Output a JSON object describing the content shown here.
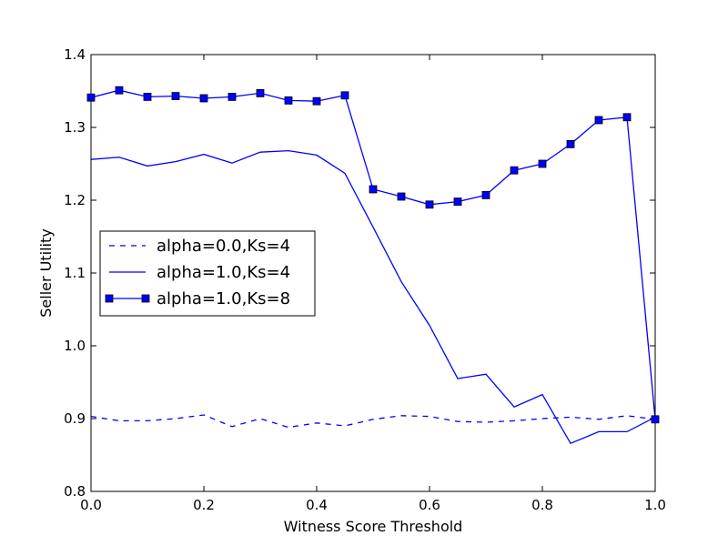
{
  "chart_data": {
    "type": "line",
    "title": "",
    "xlabel": "Witness Score Threshold",
    "ylabel": "Seller Utility",
    "xlim": [
      0.0,
      1.0
    ],
    "ylim": [
      0.8,
      1.4
    ],
    "xticks": [
      0.0,
      0.2,
      0.4,
      0.6,
      0.8,
      1.0
    ],
    "xtick_labels": [
      "0.0",
      "0.2",
      "0.4",
      "0.6",
      "0.8",
      "1.0"
    ],
    "yticks": [
      0.8,
      0.9,
      1.0,
      1.1,
      1.2,
      1.3,
      1.4
    ],
    "ytick_labels": [
      "0.8",
      "0.9",
      "1.0",
      "1.1",
      "1.2",
      "1.3",
      "1.4"
    ],
    "grid": false,
    "legend_position": "center-left",
    "color": "#0000ff",
    "x": [
      0.0,
      0.05,
      0.1,
      0.15,
      0.2,
      0.25,
      0.3,
      0.35,
      0.4,
      0.45,
      0.5,
      0.55,
      0.6,
      0.65,
      0.7,
      0.75,
      0.8,
      0.85,
      0.9,
      0.95,
      1.0
    ],
    "series": [
      {
        "name": "alpha=0.0,Ks=4",
        "style": "dashed",
        "marker": "none",
        "values": [
          0.903,
          0.897,
          0.897,
          0.9,
          0.905,
          0.889,
          0.9,
          0.888,
          0.894,
          0.89,
          0.899,
          0.904,
          0.903,
          0.896,
          0.895,
          0.897,
          0.9,
          0.902,
          0.899,
          0.904,
          0.899
        ]
      },
      {
        "name": "alpha=1.0,Ks=4",
        "style": "solid",
        "marker": "none",
        "values": [
          1.256,
          1.259,
          1.247,
          1.253,
          1.263,
          1.251,
          1.266,
          1.268,
          1.262,
          1.237,
          1.163,
          1.088,
          1.028,
          0.955,
          0.961,
          0.916,
          0.933,
          0.866,
          0.882,
          0.882,
          0.902
        ]
      },
      {
        "name": "alpha=1.0,Ks=8",
        "style": "solid",
        "marker": "square",
        "values": [
          1.341,
          1.351,
          1.342,
          1.343,
          1.34,
          1.342,
          1.347,
          1.337,
          1.336,
          1.344,
          1.215,
          1.205,
          1.194,
          1.198,
          1.207,
          1.241,
          1.25,
          1.277,
          1.31,
          1.314,
          0.899
        ]
      }
    ]
  }
}
